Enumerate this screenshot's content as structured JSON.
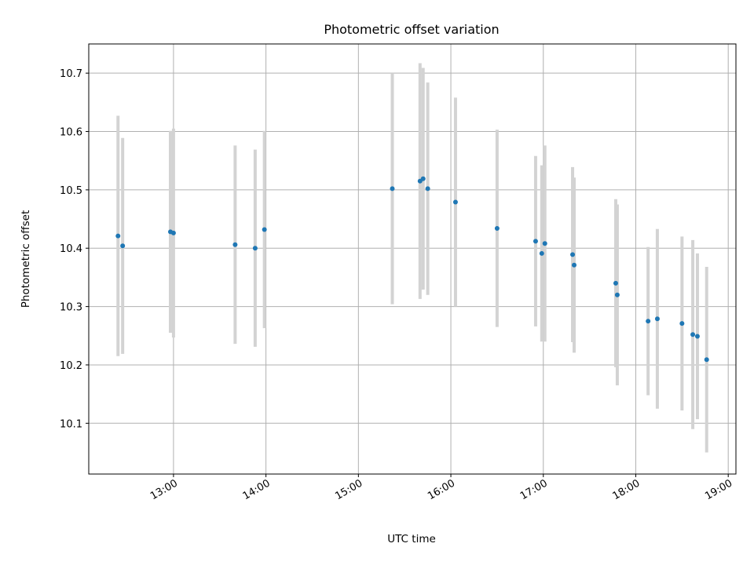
{
  "chart_data": {
    "type": "scatter",
    "title": "Photometric offset variation",
    "xlabel": "UTC time",
    "ylabel": "Photometric offset",
    "x_unit": "UTC time (HH:MM)",
    "xlim": [
      "12:05",
      "19:05"
    ],
    "ylim": [
      10.013,
      10.75
    ],
    "x_ticks": [
      "13:00",
      "14:00",
      "15:00",
      "16:00",
      "17:00",
      "18:00",
      "19:00"
    ],
    "y_ticks": [
      "10.1",
      "10.2",
      "10.3",
      "10.4",
      "10.5",
      "10.6",
      "10.7"
    ],
    "grid": true,
    "marker_color": "#1f77b4",
    "errorbar_color": "#d3d3d3",
    "series": [
      {
        "points": [
          {
            "x": "12:24",
            "y": 10.421,
            "yerr": 0.206
          },
          {
            "x": "12:27",
            "y": 10.404,
            "yerr": 0.185
          },
          {
            "x": "12:58",
            "y": 10.428,
            "yerr": 0.173
          },
          {
            "x": "13:00",
            "y": 10.426,
            "yerr": 0.179
          },
          {
            "x": "13:40",
            "y": 10.406,
            "yerr": 0.17
          },
          {
            "x": "13:53",
            "y": 10.4,
            "yerr": 0.169
          },
          {
            "x": "13:59",
            "y": 10.432,
            "yerr": 0.169
          },
          {
            "x": "15:22",
            "y": 10.502,
            "yerr": 0.198
          },
          {
            "x": "15:40",
            "y": 10.515,
            "yerr": 0.202
          },
          {
            "x": "15:42",
            "y": 10.519,
            "yerr": 0.19
          },
          {
            "x": "15:45",
            "y": 10.502,
            "yerr": 0.182
          },
          {
            "x": "16:03",
            "y": 10.479,
            "yerr": 0.179
          },
          {
            "x": "16:30",
            "y": 10.434,
            "yerr": 0.169
          },
          {
            "x": "16:55",
            "y": 10.412,
            "yerr": 0.146
          },
          {
            "x": "16:59",
            "y": 10.391,
            "yerr": 0.151
          },
          {
            "x": "17:01",
            "y": 10.408,
            "yerr": 0.168
          },
          {
            "x": "17:19",
            "y": 10.389,
            "yerr": 0.15
          },
          {
            "x": "17:20",
            "y": 10.371,
            "yerr": 0.15
          },
          {
            "x": "17:47",
            "y": 10.34,
            "yerr": 0.144
          },
          {
            "x": "17:48",
            "y": 10.32,
            "yerr": 0.155
          },
          {
            "x": "18:08",
            "y": 10.275,
            "yerr": 0.127
          },
          {
            "x": "18:14",
            "y": 10.279,
            "yerr": 0.154
          },
          {
            "x": "18:30",
            "y": 10.271,
            "yerr": 0.149
          },
          {
            "x": "18:37",
            "y": 10.252,
            "yerr": 0.162
          },
          {
            "x": "18:40",
            "y": 10.249,
            "yerr": 0.142
          },
          {
            "x": "18:46",
            "y": 10.209,
            "yerr": 0.159
          }
        ]
      }
    ]
  }
}
